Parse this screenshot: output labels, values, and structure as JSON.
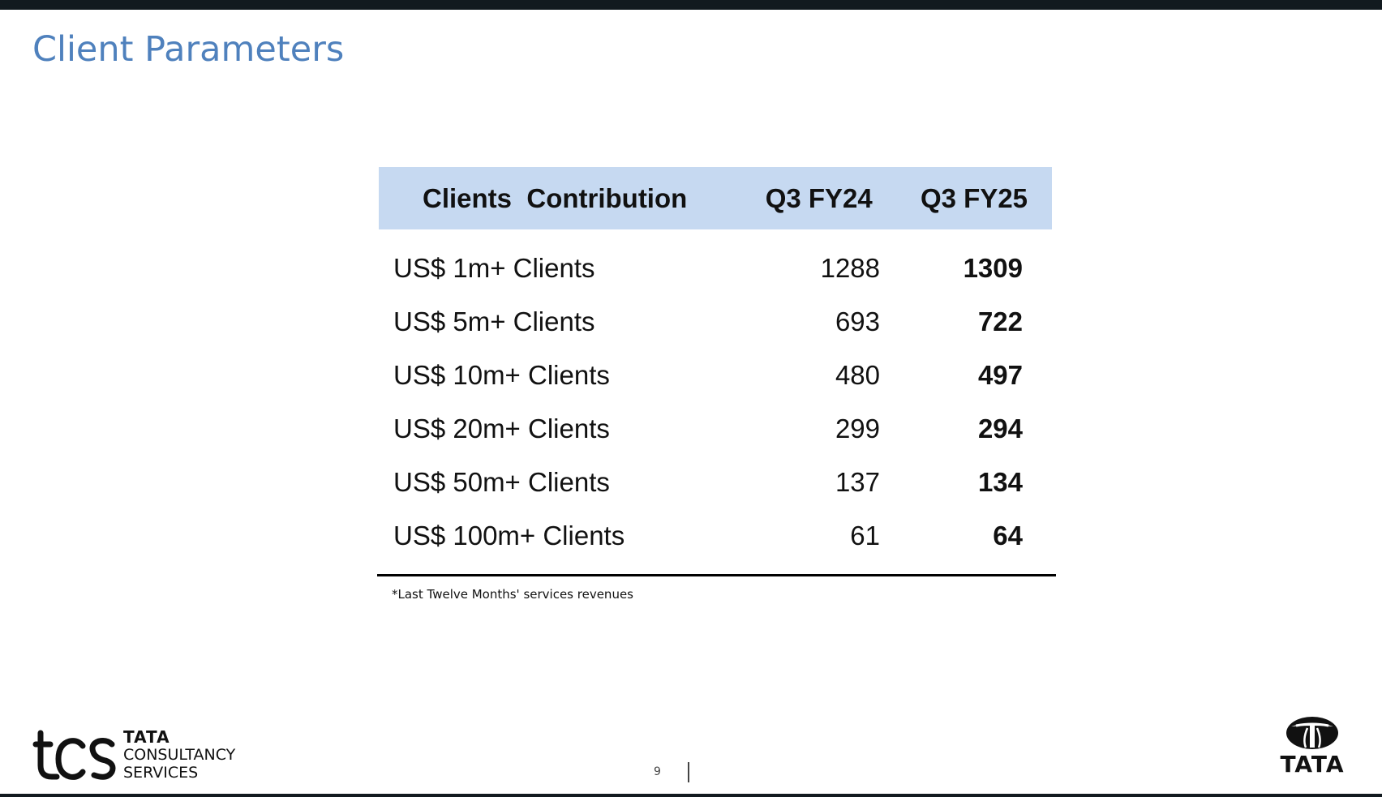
{
  "slide": {
    "title": "Client Parameters",
    "page_number": "9"
  },
  "table": {
    "headers": {
      "label": "Clients  Contribution",
      "prev": "Q3 FY24",
      "curr": "Q3 FY25"
    },
    "rows": [
      {
        "label": "US$ 1m+ Clients",
        "prev": "1288",
        "curr": "1309"
      },
      {
        "label": "US$ 5m+ Clients",
        "prev": "693",
        "curr": "722"
      },
      {
        "label": "US$ 10m+ Clients",
        "prev": "480",
        "curr": "497"
      },
      {
        "label": "US$ 20m+ Clients",
        "prev": "299",
        "curr": "294"
      },
      {
        "label": "US$ 50m+ Clients",
        "prev": "137",
        "curr": "134"
      },
      {
        "label": "US$ 100m+ Clients",
        "prev": "61",
        "curr": "64"
      }
    ],
    "footnote": "*Last Twelve Months' services revenues"
  },
  "logos": {
    "tcs": {
      "mark": "tcs",
      "line1": "TATA",
      "line2": "CONSULTANCY",
      "line3": "SERVICES"
    },
    "tata": {
      "text": "TATA"
    }
  },
  "colors": {
    "title": "#4f81bd",
    "header_fill": "#c6d9f1",
    "bars": "#121a1f"
  }
}
